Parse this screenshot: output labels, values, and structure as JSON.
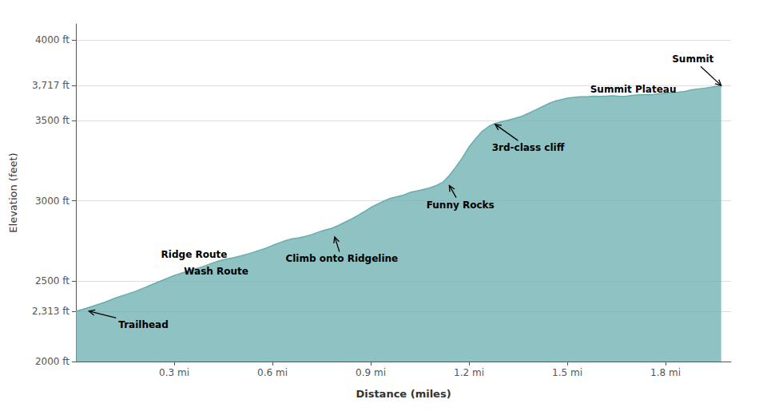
{
  "chart_data": {
    "type": "area",
    "xlabel": "Distance (miles)",
    "ylabel": "Elevation (feet)",
    "color": "#6aadad",
    "grid": true,
    "xlim": [
      0,
      2.0
    ],
    "xticks": [
      {
        "value": 0.3,
        "label": "0.3 mi"
      },
      {
        "value": 0.6,
        "label": "0.6 mi"
      },
      {
        "value": 0.9,
        "label": "0.9 mi"
      },
      {
        "value": 1.2,
        "label": "1.2 mi"
      },
      {
        "value": 1.5,
        "label": "1.5 mi"
      },
      {
        "value": 1.8,
        "label": "1.8 mi"
      }
    ],
    "ylim": [
      2000,
      4100
    ],
    "yticks": [
      {
        "value": 2000,
        "label": "2000 ft"
      },
      {
        "value": 2313,
        "label": "2,313 ft"
      },
      {
        "value": 2500,
        "label": "2500 ft"
      },
      {
        "value": 3000,
        "label": "3000 ft"
      },
      {
        "value": 3500,
        "label": "3500 ft"
      },
      {
        "value": 3717,
        "label": "3,717 ft"
      },
      {
        "value": 4000,
        "label": "4000 ft"
      }
    ],
    "annotations": [
      {
        "text": "Trailhead",
        "xy": [
          0.04,
          2313
        ],
        "xytext": [
          0.13,
          2230
        ],
        "arrow": true
      },
      {
        "text": "Ridge Route",
        "xytext": [
          0.26,
          2665
        ],
        "arrow": false
      },
      {
        "text": "Wash Route",
        "xytext": [
          0.33,
          2560
        ],
        "arrow": false
      },
      {
        "text": "Climb onto Ridgeline",
        "xy": [
          0.79,
          2775
        ],
        "xytext": [
          0.64,
          2638
        ],
        "arrow": true
      },
      {
        "text": "Funny Rocks",
        "xy": [
          1.14,
          3095
        ],
        "xytext": [
          1.07,
          2975
        ],
        "arrow": true
      },
      {
        "text": "3rd-class cliff",
        "xy": [
          1.28,
          3475
        ],
        "xytext": [
          1.27,
          3330
        ],
        "arrow": true
      },
      {
        "text": "Summit Plateau",
        "xytext": [
          1.57,
          3695
        ],
        "arrow": false
      },
      {
        "text": "Summit",
        "xy": [
          1.97,
          3717
        ],
        "xytext": [
          1.82,
          3880
        ],
        "arrow": true
      }
    ],
    "x": [
      0.0,
      0.03,
      0.06,
      0.09,
      0.12,
      0.15,
      0.18,
      0.21,
      0.24,
      0.27,
      0.3,
      0.33,
      0.36,
      0.38,
      0.4,
      0.42,
      0.44,
      0.46,
      0.48,
      0.5,
      0.53,
      0.56,
      0.58,
      0.6,
      0.62,
      0.64,
      0.66,
      0.68,
      0.7,
      0.72,
      0.74,
      0.76,
      0.78,
      0.8,
      0.82,
      0.84,
      0.86,
      0.88,
      0.9,
      0.92,
      0.94,
      0.96,
      0.98,
      1.0,
      1.02,
      1.05,
      1.08,
      1.1,
      1.12,
      1.14,
      1.16,
      1.18,
      1.2,
      1.22,
      1.24,
      1.26,
      1.28,
      1.3,
      1.32,
      1.34,
      1.36,
      1.38,
      1.4,
      1.42,
      1.44,
      1.46,
      1.48,
      1.5,
      1.52,
      1.54,
      1.56,
      1.58,
      1.6,
      1.62,
      1.64,
      1.66,
      1.68,
      1.7,
      1.72,
      1.74,
      1.76,
      1.78,
      1.8,
      1.82,
      1.84,
      1.86,
      1.88,
      1.9,
      1.92,
      1.94,
      1.96,
      1.97
    ],
    "values": [
      2313,
      2330,
      2350,
      2370,
      2395,
      2415,
      2435,
      2460,
      2485,
      2510,
      2535,
      2555,
      2575,
      2585,
      2600,
      2615,
      2628,
      2638,
      2645,
      2655,
      2672,
      2692,
      2705,
      2722,
      2738,
      2752,
      2763,
      2770,
      2778,
      2790,
      2805,
      2818,
      2828,
      2845,
      2865,
      2885,
      2908,
      2932,
      2958,
      2978,
      2998,
      3015,
      3025,
      3035,
      3052,
      3065,
      3080,
      3095,
      3115,
      3158,
      3210,
      3268,
      3335,
      3385,
      3432,
      3462,
      3482,
      3492,
      3502,
      3513,
      3524,
      3543,
      3562,
      3582,
      3602,
      3618,
      3628,
      3638,
      3643,
      3647,
      3647,
      3651,
      3649,
      3651,
      3653,
      3649,
      3651,
      3656,
      3659,
      3661,
      3661,
      3666,
      3671,
      3673,
      3676,
      3681,
      3691,
      3696,
      3701,
      3706,
      3713,
      3717
    ]
  }
}
